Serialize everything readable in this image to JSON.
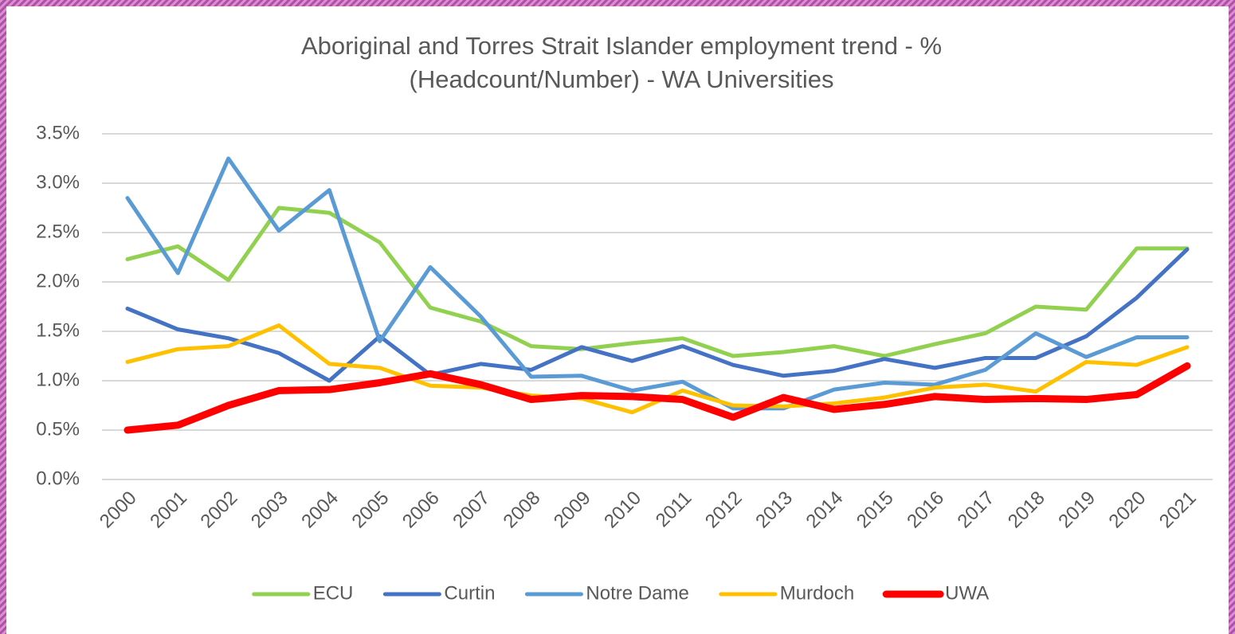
{
  "chart_data": {
    "type": "line",
    "title": [
      "Aboriginal and Torres Strait Islander employment  trend - %",
      "(Headcount/Number) - WA Universities"
    ],
    "categories": [
      "2000",
      "2001",
      "2002",
      "2003",
      "2004",
      "2005",
      "2006",
      "2007",
      "2008",
      "2009",
      "2010",
      "2011",
      "2012",
      "2013",
      "2014",
      "2015",
      "2016",
      "2017",
      "2018",
      "2019",
      "2020",
      "2021"
    ],
    "series": [
      {
        "name": "ECU",
        "color": "#92d050",
        "values": [
          2.23,
          2.36,
          2.02,
          2.75,
          2.7,
          2.4,
          1.74,
          1.6,
          1.35,
          1.32,
          1.38,
          1.43,
          1.25,
          1.29,
          1.35,
          1.25,
          1.37,
          1.48,
          1.75,
          1.72,
          2.34,
          2.34
        ]
      },
      {
        "name": "Curtin",
        "color": "#4472c4",
        "values": [
          1.73,
          1.52,
          1.43,
          1.28,
          1.0,
          1.45,
          1.06,
          1.17,
          1.11,
          1.34,
          1.2,
          1.35,
          1.16,
          1.05,
          1.1,
          1.22,
          1.13,
          1.23,
          1.23,
          1.45,
          1.84,
          2.33
        ]
      },
      {
        "name": "Notre Dame",
        "color": "#5b9bd5",
        "values": [
          2.85,
          2.09,
          3.25,
          2.52,
          2.93,
          1.4,
          2.15,
          1.65,
          1.04,
          1.05,
          0.9,
          0.99,
          0.72,
          0.72,
          0.91,
          0.98,
          0.96,
          1.11,
          1.48,
          1.24,
          1.44,
          1.44
        ]
      },
      {
        "name": "Murdoch",
        "color": "#ffc000",
        "values": [
          1.19,
          1.32,
          1.35,
          1.56,
          1.17,
          1.13,
          0.95,
          0.93,
          0.85,
          0.82,
          0.68,
          0.9,
          0.75,
          0.74,
          0.77,
          0.83,
          0.93,
          0.96,
          0.89,
          1.19,
          1.16,
          1.34
        ]
      },
      {
        "name": "UWA",
        "color": "#ff0000",
        "values": [
          0.5,
          0.55,
          0.75,
          0.9,
          0.91,
          0.98,
          1.07,
          0.96,
          0.81,
          0.85,
          0.84,
          0.81,
          0.63,
          0.83,
          0.71,
          0.76,
          0.84,
          0.81,
          0.82,
          0.81,
          0.86,
          1.15
        ]
      }
    ],
    "ylim": [
      0,
      3.5
    ],
    "yticks": [
      {
        "value": 0,
        "label": "0.0%"
      },
      {
        "value": 0.5,
        "label": "0.5%"
      },
      {
        "value": 1,
        "label": "1.0%"
      },
      {
        "value": 1.5,
        "label": "1.5%"
      },
      {
        "value": 2,
        "label": "2.0%"
      },
      {
        "value": 2.5,
        "label": "2.5%"
      },
      {
        "value": 3,
        "label": "3.0%"
      },
      {
        "value": 3.5,
        "label": "3.5%"
      }
    ],
    "grid": true,
    "legend": "bottom"
  }
}
